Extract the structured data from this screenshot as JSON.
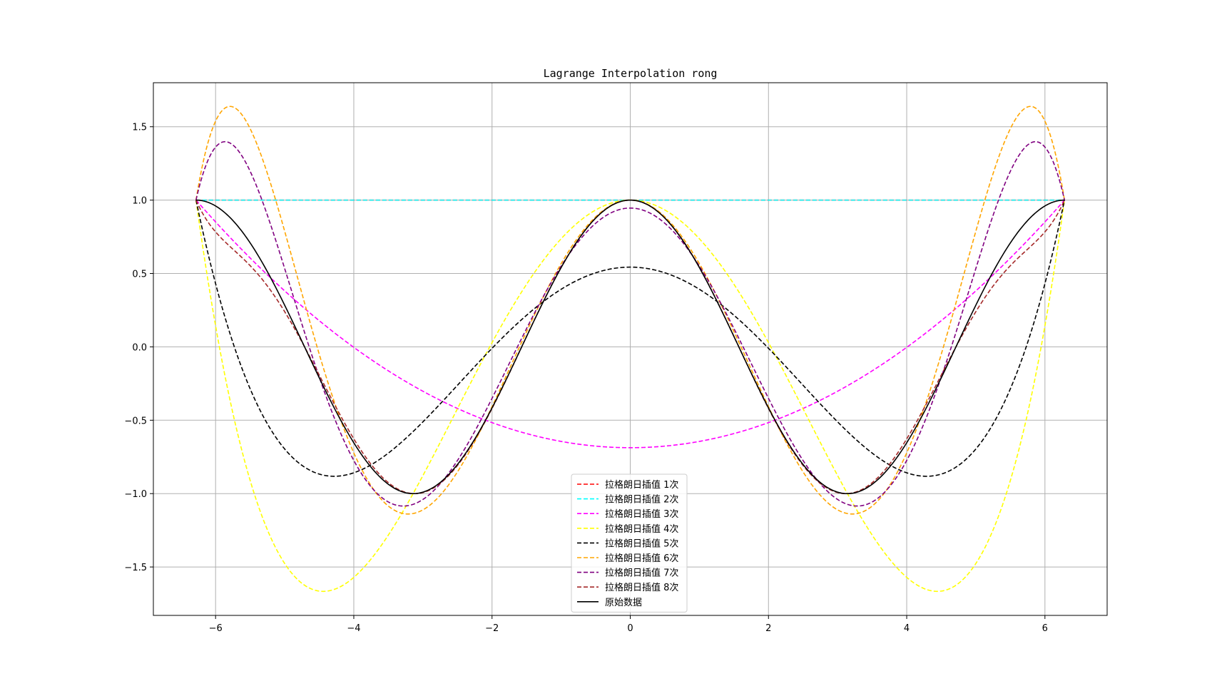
{
  "chart_data": {
    "type": "line",
    "title": "Lagrange Interpolation rong",
    "xlabel": "",
    "ylabel": "",
    "xlim": [
      -6.9,
      6.9
    ],
    "ylim": [
      -1.83,
      1.8
    ],
    "xticks": [
      -6,
      -4,
      -2,
      0,
      2,
      4,
      6
    ],
    "xtick_labels": [
      "−6",
      "−4",
      "−2",
      "0",
      "2",
      "4",
      "6"
    ],
    "yticks": [
      -1.5,
      -1.0,
      -0.5,
      0.0,
      0.5,
      1.0,
      1.5
    ],
    "ytick_labels": [
      "−1.5",
      "−1.0",
      "−0.5",
      "0.0",
      "0.5",
      "1.0",
      "1.5"
    ],
    "grid": true,
    "legend_position": "bottom-center",
    "domain": [
      -6.283,
      6.283
    ],
    "series": [
      {
        "name": "拉格朗日插值 1次",
        "color": "#ff0000",
        "dash": "dashed",
        "interp_nodes": [
          -6.283,
          6.283
        ]
      },
      {
        "name": "拉格朗日插值 2次",
        "color": "#00ffff",
        "dash": "dashed",
        "interp_nodes": [
          -6.283,
          0.0,
          6.283
        ]
      },
      {
        "name": "拉格朗日插值 3次",
        "color": "#ff00ff",
        "dash": "dashed",
        "interp_nodes": [
          -6.283,
          -2.094,
          2.094,
          6.283
        ]
      },
      {
        "name": "拉格朗日插值 4次",
        "color": "#ffff00",
        "dash": "dashed",
        "interp_nodes": [
          -6.283,
          -3.142,
          0.0,
          3.142,
          6.283
        ]
      },
      {
        "name": "拉格朗日插值 5次",
        "color": "#000000",
        "dash": "dashed",
        "interp_nodes": [
          -6.283,
          -3.77,
          -1.257,
          1.257,
          3.77,
          6.283
        ]
      },
      {
        "name": "拉格朗日插值 6次",
        "color": "#ffa500",
        "dash": "dashed",
        "interp_nodes": [
          -6.283,
          -4.189,
          -2.094,
          0.0,
          2.094,
          4.189,
          6.283
        ]
      },
      {
        "name": "拉格朗日插值 7次",
        "color": "#800080",
        "dash": "dashed",
        "interp_nodes": [
          -6.283,
          -4.488,
          -2.693,
          -0.898,
          0.898,
          2.693,
          4.488,
          6.283
        ]
      },
      {
        "name": "拉格朗日插值 8次",
        "color": "#a52a2a",
        "dash": "dashed",
        "interp_nodes": [
          -6.283,
          -4.712,
          -3.142,
          -1.571,
          0.0,
          1.571,
          3.142,
          4.712,
          6.283
        ]
      },
      {
        "name": "原始数据",
        "color": "#000000",
        "dash": "solid",
        "function": "cos(x)"
      }
    ]
  }
}
